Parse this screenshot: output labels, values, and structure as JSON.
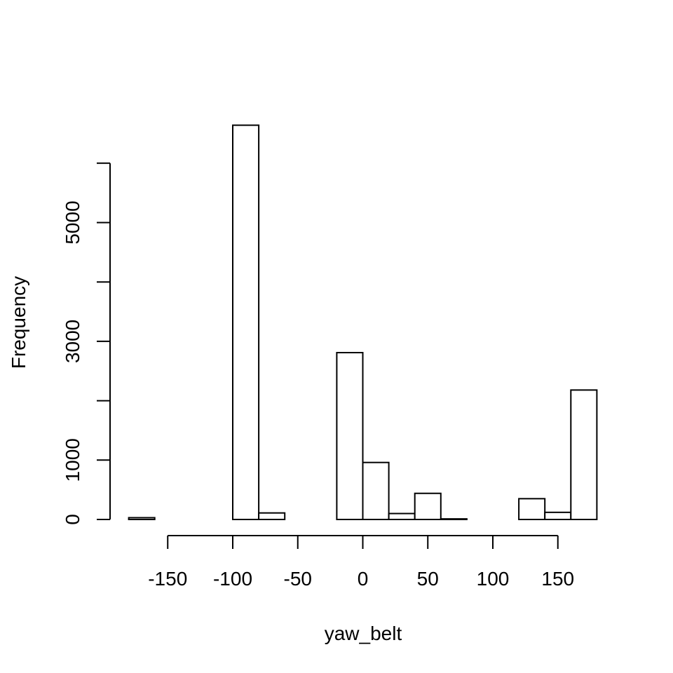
{
  "chart_data": {
    "type": "bar",
    "title": "",
    "xlabel": "yaw_belt",
    "ylabel": "Frequency",
    "bin_edges": [
      -180,
      -160,
      -140,
      -120,
      -100,
      -80,
      -60,
      -40,
      -20,
      0,
      20,
      40,
      60,
      80,
      100,
      120,
      140,
      160,
      180
    ],
    "values": [
      30,
      0,
      0,
      0,
      6640,
      110,
      0,
      0,
      2810,
      960,
      100,
      440,
      10,
      0,
      0,
      350,
      120,
      2180
    ],
    "xlim": [
      -180,
      180
    ],
    "ylim": [
      0,
      6640
    ],
    "x_ticks": [
      -150,
      -100,
      -50,
      0,
      50,
      100,
      150
    ],
    "x_tick_labels": [
      "-150",
      "-100",
      "-50",
      "0",
      "50",
      "100",
      "150"
    ],
    "y_ticks": [
      0,
      1000,
      2000,
      3000,
      4000,
      5000,
      6000
    ],
    "y_tick_labels": [
      "0",
      "1000",
      "",
      "3000",
      "",
      "5000",
      ""
    ],
    "grid": false,
    "legend": "none"
  }
}
